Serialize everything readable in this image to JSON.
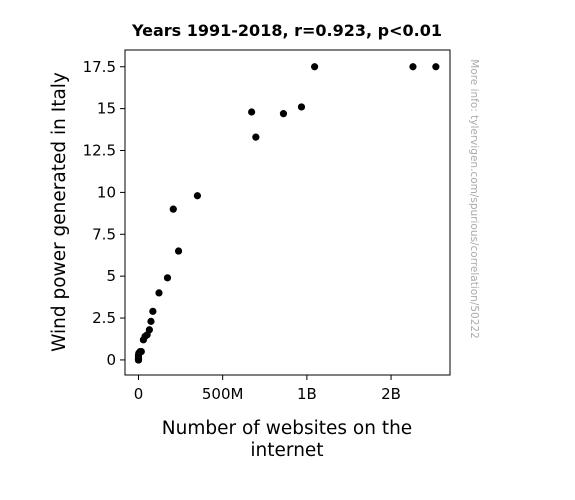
{
  "chart_data": {
    "type": "scatter",
    "title": "Years 1991-2018, r=0.923, p<0.01",
    "xlabel_lines": [
      "Number of websites on the",
      "internet"
    ],
    "ylabel": "Wind power generated in Italy",
    "credit": "More info: tylervigen.com/spurious/correlation/50222",
    "xlim": [
      -80000000,
      1850000000
    ],
    "ylim": [
      -0.9,
      18.5
    ],
    "x_ticks": [
      {
        "value": 0,
        "label": "0"
      },
      {
        "value": 500000000,
        "label": "500M"
      },
      {
        "value": 1000000000,
        "label": "1B"
      },
      {
        "value": 1500000000,
        "label": "2B"
      }
    ],
    "y_ticks": [
      {
        "value": 0,
        "label": "0"
      },
      {
        "value": 2.5,
        "label": "2.5"
      },
      {
        "value": 5,
        "label": "5"
      },
      {
        "value": 7.5,
        "label": "7.5"
      },
      {
        "value": 10,
        "label": "10"
      },
      {
        "value": 12.5,
        "label": "12.5"
      },
      {
        "value": 15,
        "label": "15"
      },
      {
        "value": 17.5,
        "label": "17.5"
      }
    ],
    "marker_color": "#000000",
    "grid": false,
    "points": [
      {
        "x": 0,
        "y": 0.0
      },
      {
        "x": 10,
        "y": 0.0
      },
      {
        "x": 130,
        "y": 0.0
      },
      {
        "x": 2738,
        "y": 0.1
      },
      {
        "x": 23500,
        "y": 0.2
      },
      {
        "x": 257601,
        "y": 0.3
      },
      {
        "x": 2400000,
        "y": 0.4
      },
      {
        "x": 10000000,
        "y": 0.5
      },
      {
        "x": 17100000,
        "y": 0.5
      },
      {
        "x": 29300000,
        "y": 1.2
      },
      {
        "x": 38800000,
        "y": 1.4
      },
      {
        "x": 51600000,
        "y": 1.5
      },
      {
        "x": 64800000,
        "y": 1.8
      },
      {
        "x": 74300000,
        "y": 2.3
      },
      {
        "x": 85500000,
        "y": 2.9
      },
      {
        "x": 121900000,
        "y": 4.0
      },
      {
        "x": 172300000,
        "y": 4.9
      },
      {
        "x": 206700000,
        "y": 9.0
      },
      {
        "x": 238000000,
        "y": 6.5
      },
      {
        "x": 350000000,
        "y": 9.8
      },
      {
        "x": 672000000,
        "y": 14.8
      },
      {
        "x": 697000000,
        "y": 13.3
      },
      {
        "x": 861000000,
        "y": 14.7
      },
      {
        "x": 968000000,
        "y": 15.1
      },
      {
        "x": 1046000000,
        "y": 17.5
      },
      {
        "x": 1630000000,
        "y": 17.5
      },
      {
        "x": 1766000000,
        "y": 17.5
      }
    ]
  }
}
